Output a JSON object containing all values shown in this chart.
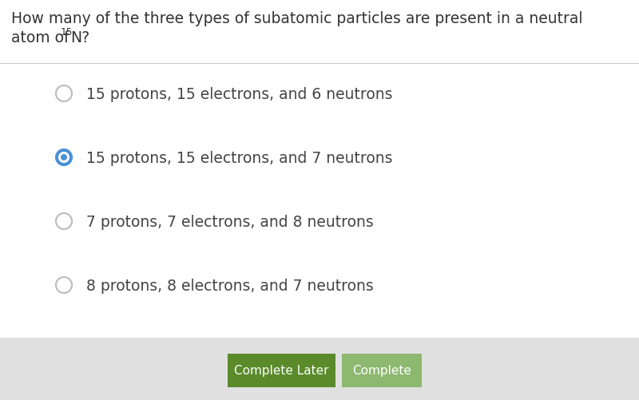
{
  "background_color": "#ffffff",
  "question_line1": "How many of the three types of subatomic particles are present in a neutral",
  "question_line2_prefix": "atom of ",
  "question_superscript": "15",
  "question_element": "N?",
  "options": [
    "15 protons, 15 electrons, and 6 neutrons",
    "15 protons, 15 electrons, and 7 neutrons",
    "7 protons, 7 electrons, and 8 neutrons",
    "8 protons, 8 electrons, and 7 neutrons"
  ],
  "selected_option": 1,
  "radio_unselected_color": "#ffffff",
  "radio_unselected_edge": "#bbbbbb",
  "radio_selected_fill": "#4a90d9",
  "radio_selected_edge": "#4a90d9",
  "radio_selected_inner": "#ffffff",
  "option_text_color": "#444444",
  "option_fontsize": 13.5,
  "question_fontsize": 13.5,
  "question_text_color": "#333333",
  "footer_bg_color": "#e0e0e0",
  "btn_later_color": "#5a8a2a",
  "btn_later_text": "Complete Later",
  "btn_complete_color": "#8db870",
  "btn_complete_text": "Complete",
  "btn_text_color": "#ffffff",
  "btn_fontsize": 11,
  "divider_color": "#cccccc"
}
